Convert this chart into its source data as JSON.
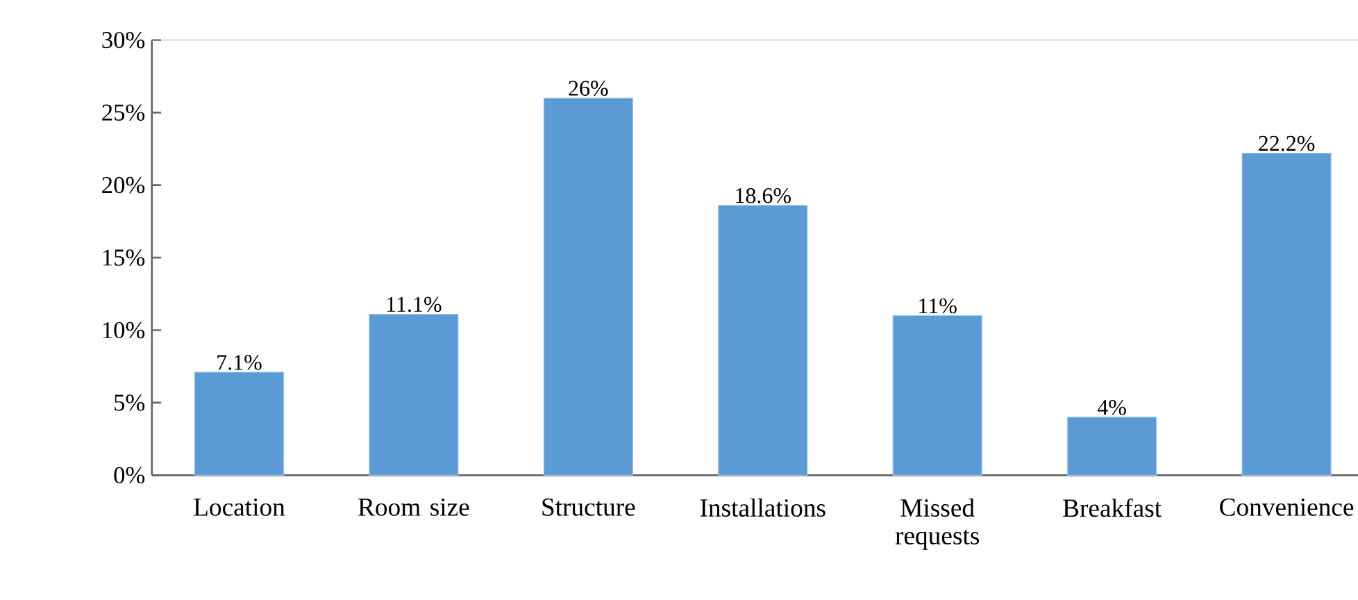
{
  "chart_data": {
    "type": "bar",
    "categories": [
      "Location",
      "Room size",
      "Structure",
      "Installations",
      "Missed requests",
      "Breakfast",
      "Convenience"
    ],
    "values": [
      7.1,
      11.1,
      26,
      18.6,
      11,
      4,
      22.2
    ],
    "value_labels": [
      "7.1%",
      "11.1%",
      "26%",
      "18.6%",
      "11%",
      "4%",
      "22.2%"
    ],
    "color": "#5b9bd5",
    "ylim": [
      0,
      30
    ],
    "yticks": [
      {
        "value": 0,
        "label": "0%"
      },
      {
        "value": 5,
        "label": "5%"
      },
      {
        "value": 10,
        "label": "10%"
      },
      {
        "value": 15,
        "label": "15%"
      },
      {
        "value": 20,
        "label": "20%"
      },
      {
        "value": 25,
        "label": "25%"
      },
      {
        "value": 30,
        "label": "30%"
      }
    ],
    "grid": false
  }
}
